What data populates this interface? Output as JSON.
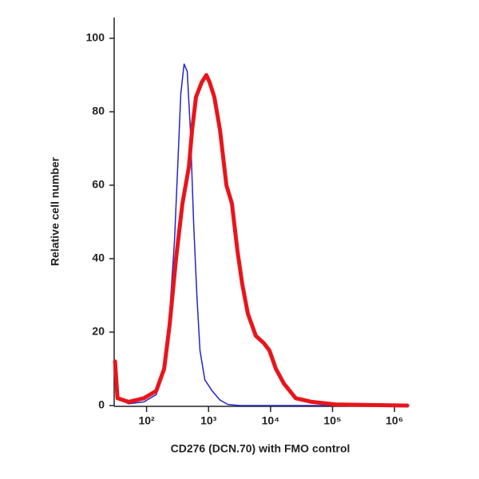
{
  "chart_data": {
    "type": "line",
    "x_label": "CD276 (DCN.70) with FMO control",
    "y_label": "Relative cell number",
    "xscale": "log",
    "xlim": [
      30,
      1600000
    ],
    "ylim": [
      0,
      100
    ],
    "xticks": [
      {
        "value": 100,
        "label": "10²"
      },
      {
        "value": 1000,
        "label": "10³"
      },
      {
        "value": 10000,
        "label": "10⁴"
      },
      {
        "value": 100000,
        "label": "10⁵"
      },
      {
        "value": 1000000,
        "label": "10⁶"
      }
    ],
    "yticks": [
      0,
      20,
      40,
      60,
      80,
      100
    ],
    "series": [
      {
        "color": "#2424c8",
        "line_width": 1.5,
        "x": [
          31,
          34,
          51,
          91,
          143,
          192,
          236,
          282,
          318,
          357,
          403,
          453,
          510,
          574,
          647,
          728,
          871,
          1140,
          1530,
          2050,
          3200,
          1610000
        ],
        "values": [
          12,
          2,
          0.5,
          1,
          3,
          10,
          25,
          45,
          65,
          85,
          93,
          91,
          75,
          50,
          30,
          15,
          7,
          4,
          1.5,
          0.3,
          0,
          0
        ]
      },
      {
        "color": "#e8151b",
        "line_width": 5,
        "x": [
          31,
          34,
          51,
          91,
          143,
          192,
          236,
          299,
          379,
          481,
          542,
          628,
          773,
          923,
          1040,
          1240,
          1530,
          1940,
          2380,
          2930,
          3500,
          4310,
          5790,
          7790,
          9590,
          12200,
          16400,
          25500,
          46200,
          112000,
          1610000
        ],
        "values": [
          12,
          2,
          1,
          2,
          4,
          10,
          22,
          40,
          55,
          65,
          75,
          84,
          88,
          90,
          88,
          84,
          75,
          60,
          55,
          42,
          33,
          25,
          19,
          17,
          15,
          10,
          6,
          2,
          1,
          0.3,
          0
        ]
      }
    ]
  }
}
